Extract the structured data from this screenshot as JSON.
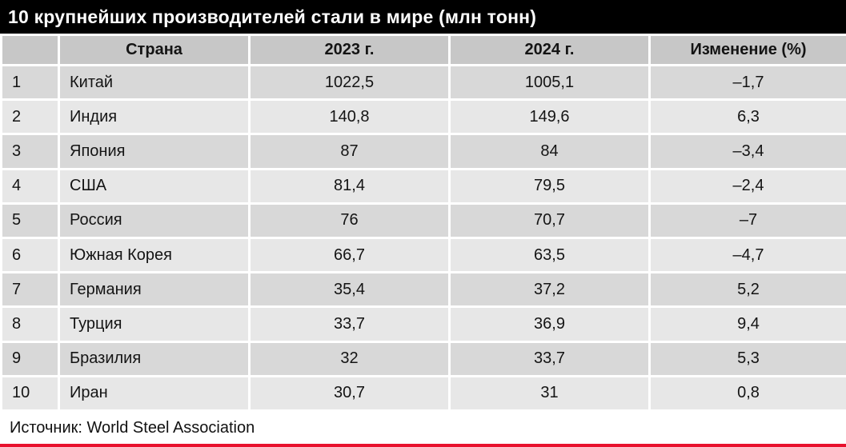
{
  "title": "10 крупнейших производителей стали в мире (млн тонн)",
  "source": "Источник: World Steel Association",
  "colors": {
    "title_bg": "#000000",
    "title_fg": "#ffffff",
    "header_bg": "#c7c7c7",
    "row_odd_bg": "#d8d8d8",
    "row_even_bg": "#e7e7e7",
    "accent_bottom_border": "#e8112d"
  },
  "chart_data": {
    "type": "table",
    "title": "10 крупнейших производителей стали в мире (млн тонн)",
    "source": "Источник: World Steel Association",
    "columns": [
      "",
      "Страна",
      "2023 г.",
      "2024 г.",
      "Изменение (%)"
    ],
    "rows": [
      {
        "rank": "1",
        "country": "Китай",
        "y2023": "1022,5",
        "y2024": "1005,1",
        "change": "–1,7"
      },
      {
        "rank": "2",
        "country": "Индия",
        "y2023": "140,8",
        "y2024": "149,6",
        "change": "6,3"
      },
      {
        "rank": "3",
        "country": "Япония",
        "y2023": "87",
        "y2024": "84",
        "change": "–3,4"
      },
      {
        "rank": "4",
        "country": "США",
        "y2023": "81,4",
        "y2024": "79,5",
        "change": "–2,4"
      },
      {
        "rank": "5",
        "country": "Россия",
        "y2023": "76",
        "y2024": "70,7",
        "change": "–7"
      },
      {
        "rank": "6",
        "country": "Южная Корея",
        "y2023": "66,7",
        "y2024": "63,5",
        "change": "–4,7"
      },
      {
        "rank": "7",
        "country": "Германия",
        "y2023": "35,4",
        "y2024": "37,2",
        "change": "5,2"
      },
      {
        "rank": "8",
        "country": "Турция",
        "y2023": "33,7",
        "y2024": "36,9",
        "change": "9,4"
      },
      {
        "rank": "9",
        "country": "Бразилия",
        "y2023": "32",
        "y2024": "33,7",
        "change": "5,3"
      },
      {
        "rank": "10",
        "country": "Иран",
        "y2023": "30,7",
        "y2024": "31",
        "change": "0,8"
      }
    ]
  }
}
